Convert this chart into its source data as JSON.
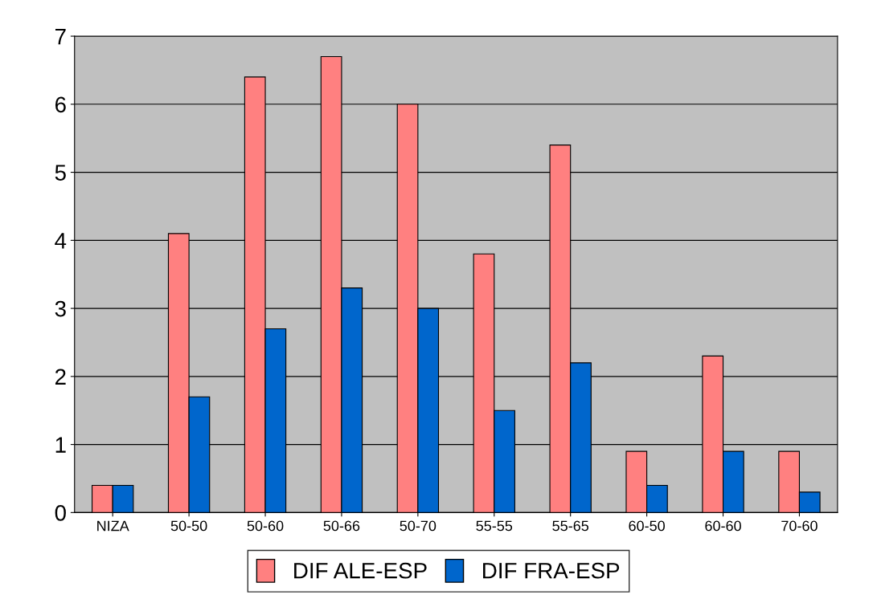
{
  "chart_data": {
    "type": "bar",
    "categories": [
      "NIZA",
      "50-50",
      "50-60",
      "50-66",
      "50-70",
      "55-55",
      "55-65",
      "60-50",
      "60-60",
      "70-60"
    ],
    "series": [
      {
        "name": "DIF ALE-ESP",
        "color": "#ff8080",
        "values": [
          0.4,
          4.1,
          6.4,
          6.7,
          6.0,
          3.8,
          5.4,
          0.9,
          2.3,
          0.9
        ]
      },
      {
        "name": "DIF FRA-ESP",
        "color": "#0066cc",
        "values": [
          0.4,
          1.7,
          2.7,
          3.3,
          3.0,
          1.5,
          2.2,
          0.4,
          0.9,
          0.3
        ]
      }
    ],
    "ylim": [
      0,
      7
    ],
    "yticks": [
      0,
      1,
      2,
      3,
      4,
      5,
      6,
      7
    ],
    "grid": "y",
    "legend": "bottom"
  }
}
